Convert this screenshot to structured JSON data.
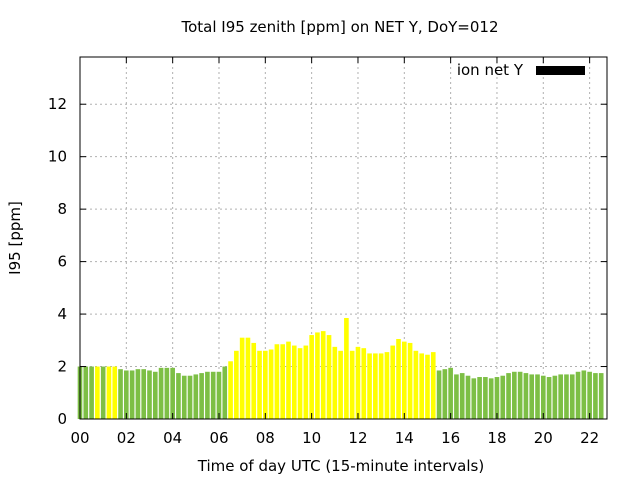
{
  "chart_data": {
    "type": "bar",
    "title": "Total I95 zenith [ppm] on NET Y, DoY=012",
    "xlabel": "Time of day UTC (15-minute intervals)",
    "ylabel": "I95 [ppm]",
    "xlim": [
      0,
      22.75
    ],
    "ylim": [
      0,
      13.8
    ],
    "x_ticks": [
      "00",
      "02",
      "04",
      "06",
      "08",
      "10",
      "12",
      "14",
      "16",
      "18",
      "20",
      "22"
    ],
    "x_tick_values": [
      0,
      2,
      4,
      6,
      8,
      10,
      12,
      14,
      16,
      18,
      20,
      22
    ],
    "y_ticks": [
      "0",
      "2",
      "4",
      "6",
      "8",
      "10",
      "12"
    ],
    "y_tick_values": [
      0,
      2,
      4,
      6,
      8,
      10,
      12
    ],
    "grid": true,
    "legend_position": "top-right",
    "bar_interval_hours": 0.25,
    "colors": {
      "green": "#7dbf45",
      "yellow": "#ffff00",
      "legend": "#000000"
    },
    "series": [
      {
        "name": "ion net Y",
        "values": [
          2.0,
          2.0,
          2.0,
          2.0,
          2.0,
          2.0,
          2.0,
          1.9,
          1.85,
          1.85,
          1.9,
          1.9,
          1.85,
          1.8,
          1.95,
          1.95,
          1.95,
          1.75,
          1.65,
          1.65,
          1.7,
          1.75,
          1.8,
          1.8,
          1.8,
          2.0,
          2.2,
          2.6,
          3.1,
          3.1,
          2.9,
          2.6,
          2.6,
          2.65,
          2.85,
          2.85,
          2.95,
          2.8,
          2.7,
          2.8,
          3.2,
          3.3,
          3.35,
          3.2,
          2.75,
          2.6,
          3.85,
          2.6,
          2.75,
          2.7,
          2.5,
          2.5,
          2.5,
          2.55,
          2.8,
          3.05,
          2.95,
          2.9,
          2.6,
          2.5,
          2.45,
          2.55,
          1.85,
          1.9,
          1.95,
          1.7,
          1.75,
          1.65,
          1.55,
          1.6,
          1.6,
          1.55,
          1.6,
          1.65,
          1.75,
          1.8,
          1.8,
          1.75,
          1.7,
          1.7,
          1.65,
          1.6,
          1.65,
          1.7,
          1.7,
          1.7,
          1.8,
          1.85,
          1.8,
          1.75,
          1.75
        ],
        "colors": [
          "green",
          "green",
          "green",
          "yellow",
          "green",
          "yellow",
          "yellow",
          "green",
          "green",
          "green",
          "green",
          "green",
          "green",
          "green",
          "green",
          "green",
          "green",
          "green",
          "green",
          "green",
          "green",
          "green",
          "green",
          "green",
          "green",
          "green",
          "yellow",
          "yellow",
          "yellow",
          "yellow",
          "yellow",
          "yellow",
          "yellow",
          "yellow",
          "yellow",
          "yellow",
          "yellow",
          "yellow",
          "yellow",
          "yellow",
          "yellow",
          "yellow",
          "yellow",
          "yellow",
          "yellow",
          "yellow",
          "yellow",
          "yellow",
          "yellow",
          "yellow",
          "yellow",
          "yellow",
          "yellow",
          "yellow",
          "yellow",
          "yellow",
          "yellow",
          "yellow",
          "yellow",
          "yellow",
          "yellow",
          "yellow",
          "green",
          "green",
          "green",
          "green",
          "green",
          "green",
          "green",
          "green",
          "green",
          "green",
          "green",
          "green",
          "green",
          "green",
          "green",
          "green",
          "green",
          "green",
          "green",
          "green",
          "green",
          "green",
          "green",
          "green",
          "green",
          "green",
          "green",
          "green",
          "green"
        ]
      }
    ]
  }
}
